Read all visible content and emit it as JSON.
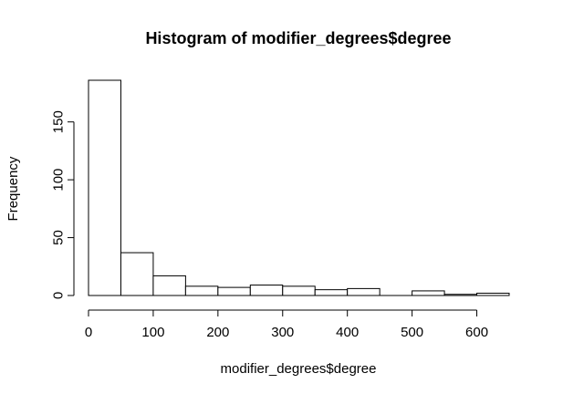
{
  "chart_data": {
    "type": "bar",
    "title": "Histogram of modifier_degrees$degree",
    "xlabel": "modifier_degrees$degree",
    "ylabel": "Frequency",
    "bin_edges": [
      0,
      50,
      100,
      150,
      200,
      250,
      300,
      350,
      400,
      450,
      500,
      550,
      600,
      650
    ],
    "values": [
      186,
      37,
      17,
      8,
      7,
      9,
      8,
      5,
      6,
      0,
      4,
      1,
      2
    ],
    "xlim": [
      0,
      650
    ],
    "ylim": [
      0,
      186
    ],
    "xticks": [
      0,
      100,
      200,
      300,
      400,
      500,
      600
    ],
    "yticks": [
      0,
      50,
      100,
      150
    ],
    "bar_fill": "#ffffff",
    "bar_stroke": "#000000"
  }
}
